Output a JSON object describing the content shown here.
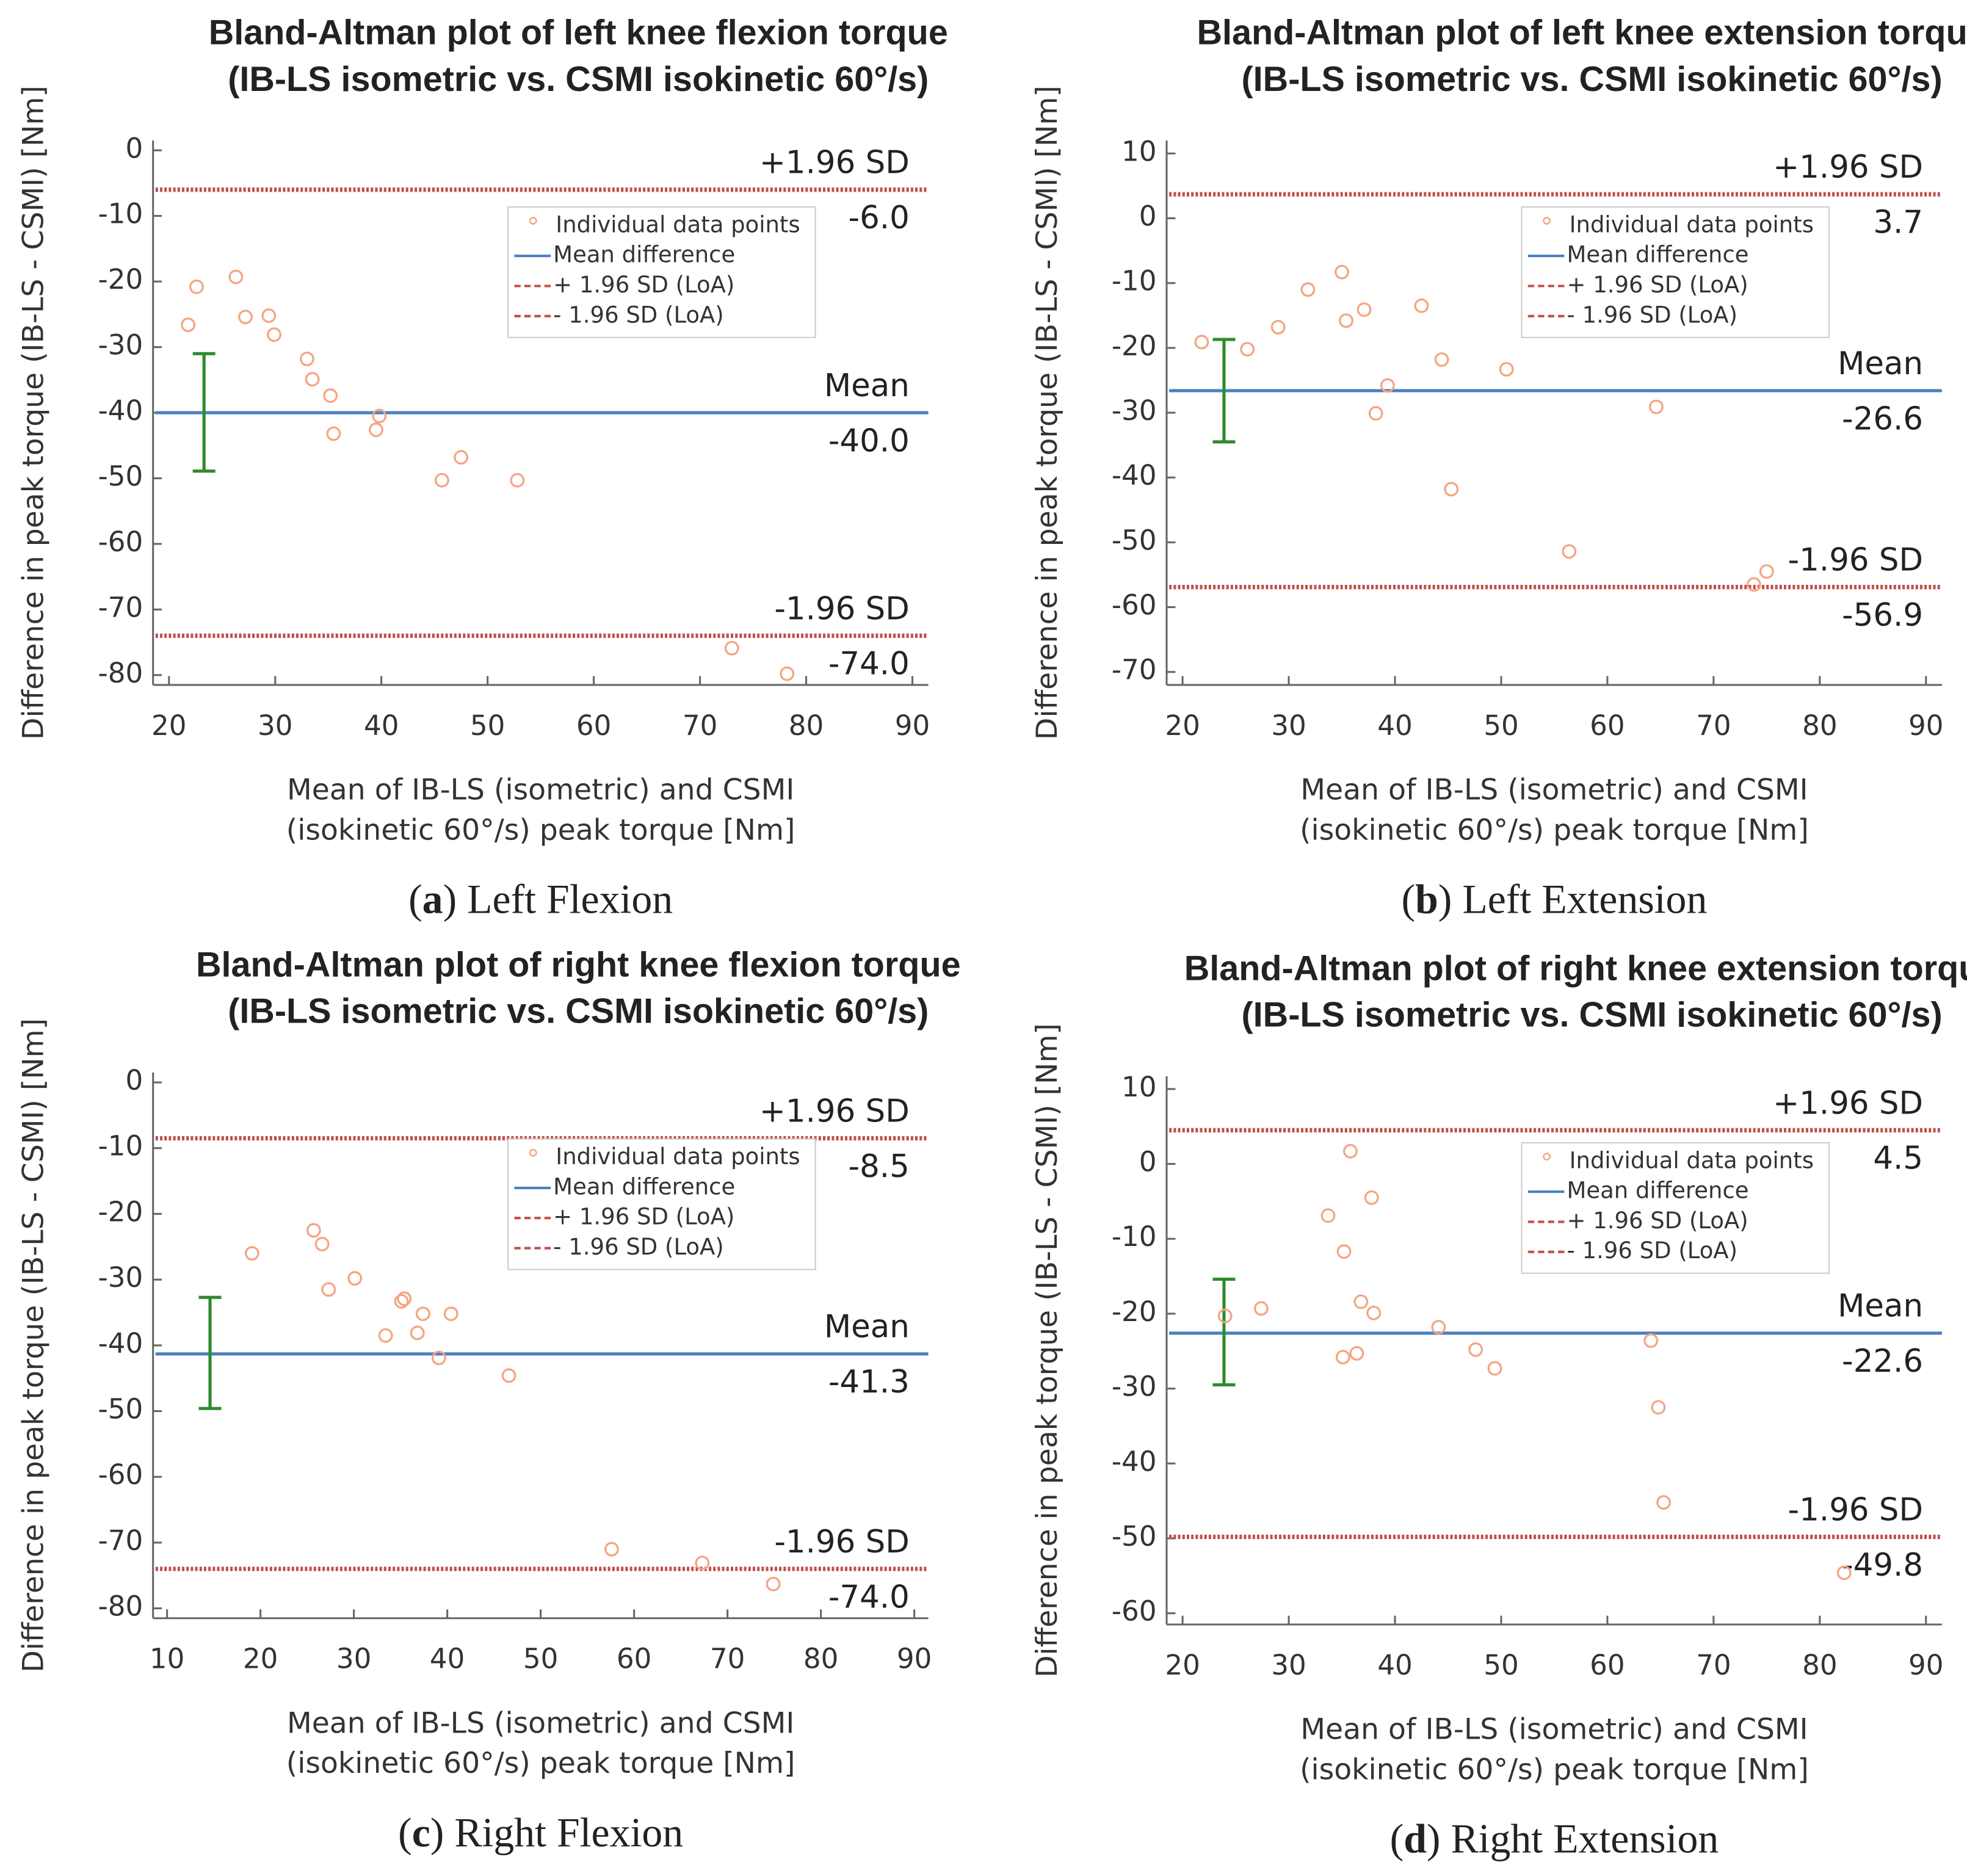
{
  "chart_data": [
    {
      "type": "scatter",
      "title": "Bland-Altman plot of left knee flexion torque",
      "subtitle": "(IB-LS isometric vs. CSMI isokinetic 60°/s)",
      "ylabel": "Difference in peak torque (IB-LS - CSMI) [Nm]",
      "xlabel": [
        "Mean of IB-LS (isometric) and CSMI",
        "(isokinetic 60°/s) peak torque [Nm]"
      ],
      "caption": [
        "(",
        "a",
        ") Left Flexion"
      ],
      "xlim": [
        18.5,
        91.5
      ],
      "xticks": [
        20,
        30,
        40,
        50,
        60,
        70,
        80,
        90
      ],
      "ylim": [
        -81.5,
        1.5
      ],
      "yticks": [
        0,
        -10,
        -20,
        -30,
        -40,
        -50,
        -60,
        -70,
        -80
      ],
      "series": [
        {
          "name": "Individual data points",
          "color": "#f4a582",
          "x": [
            21.8,
            22.6,
            26.3,
            27.2,
            29.4,
            29.9,
            33.0,
            33.5,
            35.2,
            35.5,
            39.5,
            39.8,
            45.7,
            47.5,
            52.8,
            73.0,
            78.2
          ],
          "values": [
            -26.6,
            -20.8,
            -19.3,
            -25.4,
            -25.2,
            -28.1,
            -31.8,
            -34.9,
            -37.4,
            -43.2,
            -42.6,
            -40.5,
            -50.3,
            -46.8,
            -50.3,
            -75.9,
            -79.8
          ]
        }
      ],
      "lines": [
        {
          "name": "Mean difference",
          "label": "Mean",
          "value": -40.0,
          "value_label": "-40.0",
          "color": "#4a7fc1",
          "dashed": false
        },
        {
          "name": "+ 1.96 SD (LoA)",
          "label": "+1.96 SD",
          "value": -6.0,
          "value_label": "-6.0",
          "color": "#c0504d",
          "dashed": true
        },
        {
          "name": "- 1.96 SD (LoA)",
          "label": "-1.96 SD",
          "value": -74.0,
          "value_label": "-74.0",
          "color": "#c0504d",
          "dashed": true
        }
      ],
      "error_bar": {
        "x": 23.3,
        "low": -48.9,
        "high": -31.0,
        "color": "#2e8b2e"
      }
    },
    {
      "type": "scatter",
      "title": "Bland-Altman plot of left knee extension torque",
      "subtitle": "(IB-LS isometric vs. CSMI isokinetic 60°/s)",
      "ylabel": "Difference in peak torque (IB-LS - CSMI) [Nm]",
      "xlabel": [
        "Mean of IB-LS (isometric) and CSMI",
        "(isokinetic 60°/s) peak torque [Nm]"
      ],
      "caption": [
        "(",
        "b",
        ") Left Extension"
      ],
      "xlim": [
        18.5,
        91.5
      ],
      "xticks": [
        20,
        30,
        40,
        50,
        60,
        70,
        80,
        90
      ],
      "ylim": [
        -72,
        12
      ],
      "yticks": [
        10,
        0,
        -10,
        -20,
        -30,
        -40,
        -50,
        -60,
        -70
      ],
      "series": [
        {
          "name": "Individual data points",
          "color": "#f4a582",
          "x": [
            21.8,
            26.1,
            29.0,
            31.8,
            35.0,
            35.4,
            37.1,
            38.2,
            39.3,
            42.5,
            44.4,
            45.3,
            50.5,
            56.4,
            64.6,
            73.8,
            75.0
          ],
          "values": [
            -19.1,
            -20.2,
            -16.8,
            -11.0,
            -8.3,
            -15.8,
            -14.1,
            -30.1,
            -25.8,
            -13.5,
            -21.8,
            -41.8,
            -23.3,
            -51.4,
            -29.1,
            -56.5,
            -54.5
          ]
        }
      ],
      "lines": [
        {
          "name": "Mean difference",
          "label": "Mean",
          "value": -26.6,
          "value_label": "-26.6",
          "color": "#4a7fc1",
          "dashed": false
        },
        {
          "name": "+ 1.96 SD (LoA)",
          "label": "+1.96 SD",
          "value": 3.7,
          "color": "#c0504d",
          "dashed": true
        },
        {
          "name": "- 1.96 SD (LoA)",
          "label": "-1.96 SD",
          "value": -56.9,
          "value_label": "-56.9",
          "color": "#c0504d",
          "dashed": true
        }
      ],
      "error_bar": {
        "x": 23.9,
        "low": -34.5,
        "high": -18.7,
        "color": "#2e8b2e"
      }
    },
    {
      "type": "scatter",
      "title": "Bland-Altman plot of right knee flexion torque",
      "subtitle": "(IB-LS isometric vs. CSMI isokinetic 60°/s)",
      "ylabel": "Difference in peak torque (IB-LS - CSMI) [Nm]",
      "xlabel": [
        "Mean of IB-LS (isometric) and CSMI",
        "(isokinetic 60°/s) peak torque [Nm]"
      ],
      "caption": [
        "(",
        "c",
        ") Right Flexion"
      ],
      "xlim": [
        8.5,
        91.5
      ],
      "xticks": [
        10,
        20,
        30,
        40,
        50,
        60,
        70,
        80,
        90
      ],
      "ylim": [
        -81.5,
        1.5
      ],
      "yticks": [
        0,
        -10,
        -20,
        -30,
        -40,
        -50,
        -60,
        -70,
        -80
      ],
      "series": [
        {
          "name": "Individual data points",
          "color": "#f4a582",
          "x": [
            19.1,
            25.7,
            26.6,
            27.3,
            30.1,
            33.4,
            35.1,
            35.4,
            36.8,
            37.4,
            39.1,
            40.4,
            46.6,
            57.6,
            67.3,
            74.9
          ],
          "values": [
            -26.0,
            -22.5,
            -24.6,
            -31.5,
            -29.8,
            -38.5,
            -33.3,
            -32.9,
            -38.1,
            -35.2,
            -41.9,
            -35.2,
            -44.6,
            -71.0,
            -73.1,
            -76.3
          ]
        }
      ],
      "lines": [
        {
          "name": "Mean difference",
          "label": "Mean",
          "value": -41.3,
          "value_label": "-41.3",
          "color": "#4a7fc1",
          "dashed": false
        },
        {
          "name": "+ 1.96 SD (LoA)",
          "label": "+1.96 SD",
          "value": -8.5,
          "value_label": "-8.5",
          "color": "#c0504d",
          "dashed": true
        },
        {
          "name": "- 1.96 SD (LoA)",
          "label": "-1.96 SD",
          "value": -74.0,
          "value_label": "-74.0",
          "color": "#c0504d",
          "dashed": true
        }
      ],
      "error_bar": {
        "x": 14.6,
        "low": -49.6,
        "high": -32.7,
        "color": "#2e8b2e"
      }
    },
    {
      "type": "scatter",
      "title": "Bland-Altman plot of right knee extension torque",
      "subtitle": "(IB-LS isometric vs. CSMI isokinetic 60°/s)",
      "ylabel": "Difference in peak torque (IB-LS - CSMI) [Nm]",
      "xlabel": [
        "Mean of IB-LS (isometric) and CSMI",
        "(isokinetic 60°/s) peak torque [Nm]"
      ],
      "caption": [
        "(",
        "d",
        ") Right Extension"
      ],
      "xlim": [
        18.5,
        91.5
      ],
      "xticks": [
        20,
        30,
        40,
        50,
        60,
        70,
        80,
        90
      ],
      "ylim": [
        -61.5,
        11.7
      ],
      "yticks": [
        10,
        0,
        -10,
        -20,
        -30,
        -40,
        -50,
        -60
      ],
      "series": [
        {
          "name": "Individual data points",
          "color": "#f4a582",
          "x": [
            24.0,
            27.4,
            33.7,
            35.2,
            35.8,
            35.1,
            36.4,
            36.8,
            37.8,
            38.0,
            44.1,
            47.6,
            49.4,
            64.1,
            64.8,
            65.3,
            82.3
          ],
          "values": [
            -20.3,
            -19.3,
            -6.9,
            -11.7,
            1.7,
            -25.8,
            -25.3,
            -18.4,
            -4.5,
            -19.9,
            -21.8,
            -24.8,
            -27.3,
            -23.6,
            -32.5,
            -45.2,
            -54.6
          ]
        }
      ],
      "lines": [
        {
          "name": "Mean difference",
          "label": "Mean",
          "value": -22.6,
          "value_label": "-22.6",
          "color": "#4a7fc1",
          "dashed": false
        },
        {
          "name": "+ 1.96 SD (LoA)",
          "label": "+1.96 SD",
          "value": 4.5,
          "color": "#c0504d",
          "dashed": true
        },
        {
          "name": "- 1.96 SD (LoA)",
          "label": "-1.96 SD",
          "value": -49.8,
          "value_label": "-49.8",
          "color": "#c0504d",
          "dashed": true
        }
      ],
      "error_bar": {
        "x": 23.9,
        "low": -29.5,
        "high": -15.4,
        "color": "#2e8b2e"
      }
    }
  ]
}
